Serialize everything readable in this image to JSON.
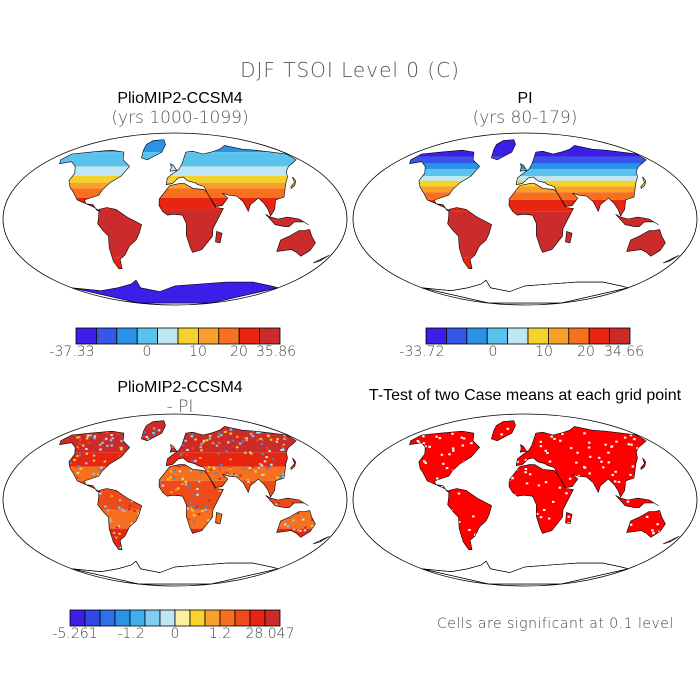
{
  "figure": {
    "title": "DJF TSOI Level 0 (C)",
    "note": "Cells are significant at 0.1 level"
  },
  "panels": [
    {
      "title": "PlioMIP2-CCSM4",
      "subtitle": "(yrs 1000-1099)",
      "colorbar": {
        "colors": [
          "#3b1ee8",
          "#3556e6",
          "#2a93e8",
          "#59c3ee",
          "#bfe6f3",
          "#f4d12c",
          "#f8a12a",
          "#f7701f",
          "#e82510",
          "#cc2b2b"
        ],
        "tick_labels": [
          "-37.33",
          "0",
          "10",
          "20",
          "35.86"
        ]
      }
    },
    {
      "title": "PI",
      "subtitle": "(yrs 80-179)",
      "colorbar": {
        "colors": [
          "#3b1ee8",
          "#3556e6",
          "#2a93e8",
          "#59c3ee",
          "#bfe6f3",
          "#f4d12c",
          "#f8a12a",
          "#f7701f",
          "#e82510",
          "#cc2b2b"
        ],
        "tick_labels": [
          "-33.72",
          "0",
          "10",
          "20",
          "34.66"
        ]
      }
    },
    {
      "title": "PlioMIP2-CCSM4",
      "subtitle": "- PI",
      "colorbar": {
        "colors": [
          "#3b1ee8",
          "#3147e6",
          "#2f6fe8",
          "#2a93e8",
          "#3fb0ec",
          "#7fcdf0",
          "#bfe6f3",
          "#fbf0a0",
          "#f7d32c",
          "#f8a12a",
          "#f7701f",
          "#ee4a1a",
          "#e82510",
          "#cc2b2b"
        ],
        "tick_labels": [
          "-5.261",
          "-1.2",
          "0",
          "1.2",
          "28.047"
        ]
      }
    },
    {
      "title": "T-Test of two Case means at each grid point"
    }
  ]
}
